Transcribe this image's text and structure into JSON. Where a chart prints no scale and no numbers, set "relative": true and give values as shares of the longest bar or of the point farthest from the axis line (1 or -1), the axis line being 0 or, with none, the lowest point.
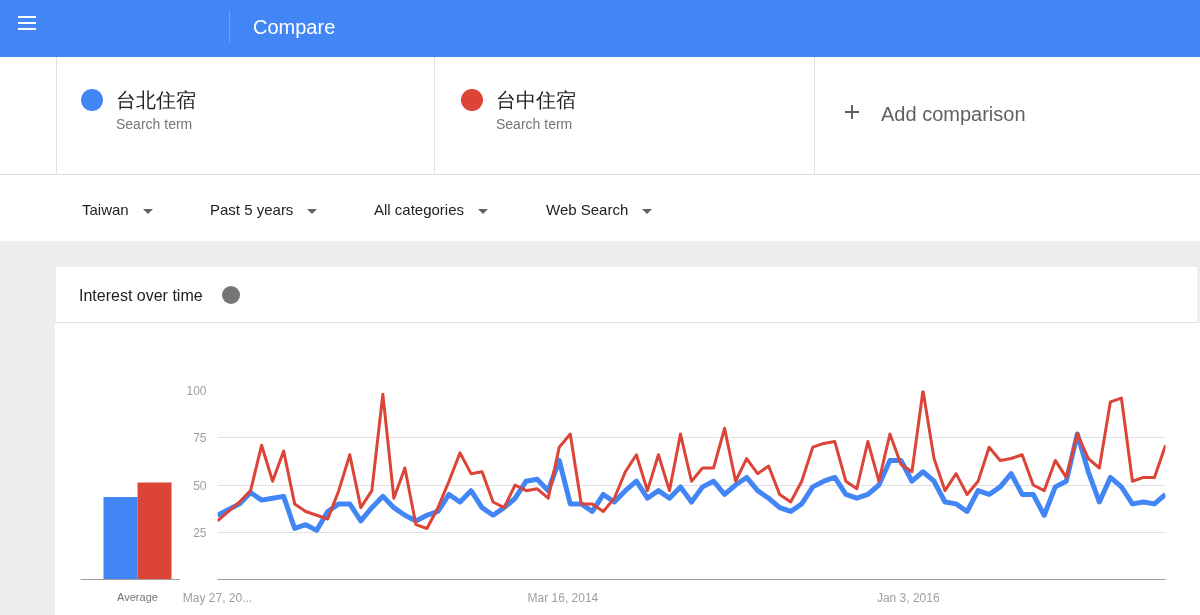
{
  "chart_data": [
    {
      "type": "bar",
      "categories": [
        "Average"
      ],
      "relative": true,
      "series": [
        {
          "color": "#4285f4",
          "values": [
            0.85
          ]
        },
        {
          "color": "#db4437",
          "values": [
            1
          ]
        }
      ]
    },
    {
      "type": "line",
      "title": "Interest over time",
      "legend": "top left",
      "grid": "y",
      "annotations": [
        "Compare",
        "Search term",
        "Search term",
        "Add comparison",
        "Taiwan",
        "Past 5 years",
        "All categories",
        "Web Search"
      ],
      "x": [
        "2012-05-27",
        "2012-06-17",
        "2012-07-08",
        "2012-07-29",
        "2012-08-19",
        "2012-09-09",
        "2012-09-30",
        "2012-10-21",
        "2012-11-11",
        "2012-12-02",
        "2012-12-23",
        "2013-01-13",
        "2013-02-03",
        "2013-02-24",
        "2013-03-17",
        "2013-04-07",
        "2013-04-28",
        "2013-05-19",
        "2013-06-09",
        "2013-06-30",
        "2013-07-21",
        "2013-08-11",
        "2013-09-01",
        "2013-09-22",
        "2013-10-13",
        "2013-11-03",
        "2013-11-24",
        "2013-12-15",
        "2014-01-05",
        "2014-01-26",
        "2014-02-16",
        "2014-03-09",
        "2014-03-30",
        "2014-04-20",
        "2014-05-11",
        "2014-06-01",
        "2014-06-22",
        "2014-07-13",
        "2014-08-03",
        "2014-08-24",
        "2014-09-14",
        "2014-10-05",
        "2014-10-26",
        "2014-11-16",
        "2014-12-07",
        "2014-12-28",
        "2015-01-18",
        "2015-02-08",
        "2015-03-01",
        "2015-03-22",
        "2015-04-12",
        "2015-05-03",
        "2015-05-24",
        "2015-06-14",
        "2015-07-05",
        "2015-07-26",
        "2015-08-16",
        "2015-09-06",
        "2015-09-27",
        "2015-10-18",
        "2015-11-08",
        "2015-11-29",
        "2015-12-20",
        "2016-01-10",
        "2016-01-31",
        "2016-02-21",
        "2016-03-13",
        "2016-04-03",
        "2016-04-24",
        "2016-05-15",
        "2016-06-05",
        "2016-06-26",
        "2016-07-17",
        "2016-08-07",
        "2016-08-28",
        "2016-09-18",
        "2016-10-09",
        "2016-10-30",
        "2016-11-20",
        "2016-12-11",
        "2017-01-01",
        "2017-01-22",
        "2017-02-12",
        "2017-03-05",
        "2017-03-26",
        "2017-04-16",
        "2017-05-07"
      ],
      "series": [
        {
          "name": "台北住宿",
          "color": "#4285f4",
          "values": [
            34,
            37,
            40,
            46,
            42,
            43,
            44,
            27,
            29,
            26,
            36,
            40,
            40,
            31,
            38,
            44,
            38,
            34,
            31,
            34,
            36,
            45,
            41,
            47,
            38,
            34,
            38,
            43,
            52,
            53,
            47,
            63,
            40,
            40,
            36,
            45,
            41,
            47,
            52,
            43,
            47,
            43,
            49,
            41,
            49,
            52,
            45,
            50,
            54,
            47,
            43,
            38,
            36,
            40,
            49,
            52,
            54,
            45,
            43,
            45,
            50,
            63,
            63,
            52,
            57,
            52,
            41,
            40,
            36,
            47,
            45,
            49,
            56,
            45,
            45,
            34,
            49,
            52,
            77,
            57,
            41,
            54,
            49,
            40,
            41,
            40,
            45
          ]
        },
        {
          "name": "台中住宿",
          "color": "#db4437",
          "values": [
            31,
            36,
            41,
            47,
            71,
            52,
            68,
            40,
            36,
            34,
            32,
            47,
            66,
            38,
            47,
            98,
            43,
            59,
            29,
            27,
            38,
            52,
            67,
            56,
            57,
            41,
            38,
            50,
            47,
            48,
            43,
            70,
            77,
            40,
            40,
            36,
            43,
            57,
            66,
            47,
            66,
            47,
            77,
            52,
            59,
            59,
            80,
            52,
            64,
            56,
            60,
            45,
            41,
            52,
            70,
            72,
            73,
            52,
            48,
            73,
            52,
            77,
            61,
            57,
            100,
            64,
            47,
            56,
            45,
            52,
            70,
            63,
            64,
            66,
            50,
            47,
            63,
            54,
            77,
            64,
            59,
            94,
            96,
            52,
            54,
            54,
            71
          ]
        }
      ],
      "xlim": [
        "2012-05-27",
        "2017-05-07"
      ],
      "xticks": [
        {
          "value": "2012-05-27",
          "label": "May 27, 20..."
        },
        {
          "value": "2014-03-16",
          "label": "Mar 16, 2014"
        },
        {
          "value": "2016-01-03",
          "label": "Jan 3, 2016"
        }
      ],
      "ylim": [
        0,
        100
      ],
      "yticks": [
        25,
        50,
        75,
        100
      ]
    }
  ]
}
